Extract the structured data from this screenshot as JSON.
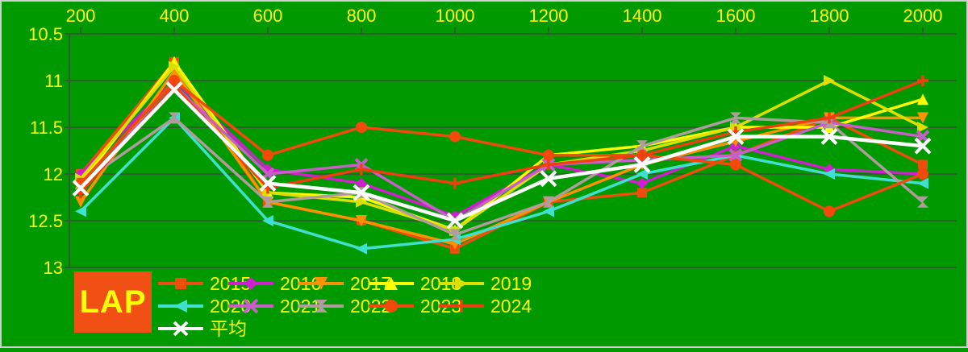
{
  "chart_data": {
    "type": "line",
    "title": "",
    "xlabel": "",
    "ylabel": "",
    "x_axis": {
      "position": "top",
      "ticks": [
        200,
        400,
        600,
        800,
        1000,
        1200,
        1400,
        1600,
        1800,
        2000
      ]
    },
    "y_axis": {
      "ticks": [
        "10.5",
        "11",
        "11.5",
        "12",
        "12.5",
        "13"
      ],
      "range": [
        10.5,
        13
      ],
      "inverted": true
    },
    "grid": true,
    "categories": [
      200,
      400,
      600,
      800,
      1000,
      1200,
      1400,
      1600,
      1800,
      2000
    ],
    "series": [
      {
        "name": "2015",
        "marker": "square",
        "color": "#ee4e0c",
        "values": [
          12.0,
          10.8,
          12.3,
          12.5,
          12.8,
          12.3,
          12.2,
          11.8,
          11.4,
          11.9
        ]
      },
      {
        "name": "2016",
        "marker": "diamond",
        "color": "#cf1fcf",
        "values": [
          12.0,
          11.0,
          11.95,
          12.1,
          12.45,
          11.9,
          12.1,
          11.7,
          11.95,
          12.0
        ]
      },
      {
        "name": "2017",
        "marker": "triangle-down",
        "color": "#ff9000",
        "values": [
          12.3,
          10.9,
          12.3,
          12.5,
          12.75,
          12.3,
          11.9,
          11.65,
          11.4,
          11.4
        ]
      },
      {
        "name": "2018",
        "marker": "triangle-up",
        "color": "#ffff00",
        "values": [
          12.1,
          10.8,
          12.2,
          12.25,
          12.6,
          11.8,
          11.7,
          11.5,
          11.5,
          11.2
        ]
      },
      {
        "name": "2019",
        "marker": "triangle-right",
        "color": "#dede00",
        "values": [
          12.05,
          10.85,
          12.2,
          12.3,
          12.6,
          11.9,
          11.75,
          11.5,
          11.0,
          11.5
        ]
      },
      {
        "name": "2020",
        "marker": "triangle-left",
        "color": "#3fe0d0",
        "values": [
          12.4,
          11.4,
          12.5,
          12.8,
          12.7,
          12.4,
          12.0,
          11.8,
          12.0,
          12.1
        ]
      },
      {
        "name": "2021",
        "marker": "x",
        "color": "#c85fc8",
        "values": [
          12.15,
          11.05,
          12.0,
          11.9,
          12.5,
          11.9,
          11.85,
          11.8,
          11.45,
          11.6
        ]
      },
      {
        "name": "2022",
        "marker": "bowtie",
        "color": "#b09c9c",
        "values": [
          12.1,
          11.4,
          12.3,
          12.2,
          12.65,
          12.3,
          11.7,
          11.4,
          11.45,
          12.3
        ]
      },
      {
        "name": "2023",
        "marker": "circle",
        "color": "#f34a0b",
        "values": [
          12.1,
          11.0,
          11.8,
          11.5,
          11.6,
          11.8,
          11.8,
          11.9,
          12.4,
          12.0
        ]
      },
      {
        "name": "2024",
        "marker": "plus",
        "color": "#ef3f10",
        "values": [
          12.2,
          11.05,
          12.15,
          11.95,
          12.1,
          11.9,
          11.8,
          11.55,
          11.4,
          11.0
        ]
      },
      {
        "name": "平均",
        "marker": "x",
        "color": "#ffffff",
        "values": [
          12.15,
          11.1,
          12.1,
          12.2,
          12.5,
          12.05,
          11.9,
          11.6,
          11.6,
          11.7
        ]
      }
    ],
    "legend": {
      "position": "bottom-left",
      "badge_label": "LAP"
    }
  },
  "colors": {
    "background": "#009a00",
    "grid_line": "#2e5e2e",
    "axis_line": "#2e5e2e",
    "tick_label": "#ffff00",
    "legend_label": "#ffff00",
    "badge_background": "#f05014",
    "badge_text": "#ffff00"
  }
}
